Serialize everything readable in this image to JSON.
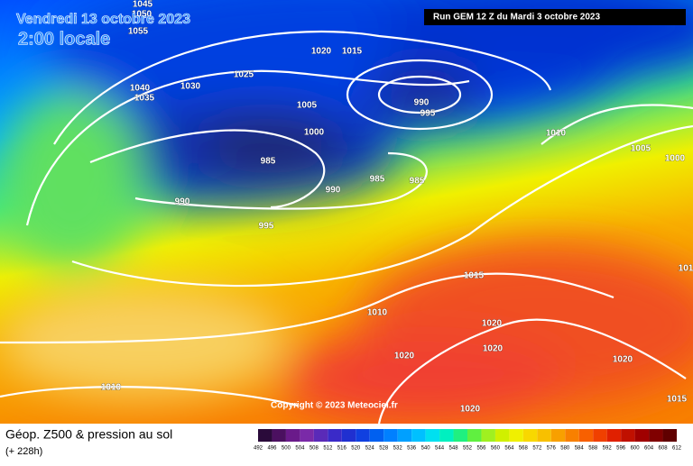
{
  "header": {
    "date": "Vendredi 13 octobre 2023",
    "time": "2:00 locale",
    "run": "Run GEM 12 Z du Mardi 3 octobre 2023"
  },
  "isobar_labels": [
    "1045",
    "1050",
    "1055",
    "1040",
    "1035",
    "1030",
    "1025",
    "1020",
    "1015",
    "1005",
    "1000",
    "990",
    "995",
    "985",
    "990",
    "990",
    "985",
    "985",
    "995",
    "1010",
    "1005",
    "1000",
    "1015",
    "1010",
    "1020",
    "1020",
    "1020",
    "1020",
    "1010",
    "1020",
    "1015",
    "101"
  ],
  "copyright": "Copyright © 2023 Meteociel.fr",
  "legend": {
    "title": "Géop. Z500 & pression au sol",
    "lead": "(+ 228h)",
    "ticks": [
      492,
      496,
      500,
      504,
      508,
      512,
      516,
      520,
      524,
      528,
      532,
      536,
      540,
      544,
      548,
      552,
      556,
      560,
      564,
      568,
      572,
      576,
      580,
      584,
      588,
      592,
      596,
      600,
      604,
      608,
      612
    ],
    "colors": [
      "#2a0a3a",
      "#4b1060",
      "#6a1a8a",
      "#7a2aa8",
      "#5a2ab8",
      "#3a2ac8",
      "#2030d0",
      "#1040e0",
      "#0060f0",
      "#0080ff",
      "#00a0ff",
      "#00c0ff",
      "#00e0f0",
      "#00f0c0",
      "#20f080",
      "#60f040",
      "#a0f020",
      "#d0f000",
      "#f0f000",
      "#f8d800",
      "#f8c000",
      "#f8a000",
      "#f88000",
      "#f86000",
      "#f04000",
      "#e02000",
      "#c01000",
      "#a00000",
      "#800000",
      "#600000"
    ]
  }
}
